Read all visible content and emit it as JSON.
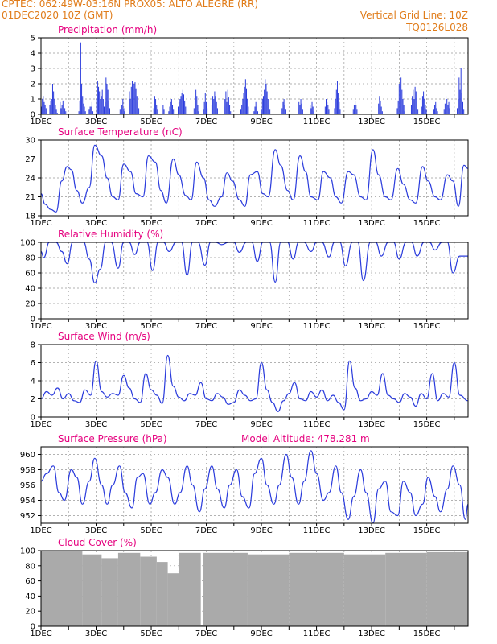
{
  "header": {
    "line1_left": "CPTEC:   062:49W-03:16N   PROX05: ALTO ALEGRE (RR)",
    "line2_left": "01DEC2020 10Z (GMT)",
    "line2_right": "Vertical Grid Line: 10Z",
    "line3_right": "TQ0126L028"
  },
  "colors": {
    "header": "#e07c1a",
    "title": "#e5007e",
    "line": "#2a3bdc",
    "cloud": "#aaaaaa"
  },
  "chart_data": [
    {
      "type": "bar",
      "title": "Precipitation (mm/h)",
      "ylim": [
        0,
        5
      ],
      "yticks": [
        0,
        1,
        2,
        3,
        4,
        5
      ],
      "xticks": [
        "1DEC",
        "3DEC",
        "5DEC",
        "7DEC",
        "9DEC",
        "11DEC",
        "13DEC",
        "15DEC"
      ],
      "xrange_days": 15.5,
      "values": [
        0.5,
        1.0,
        1.2,
        0.8,
        0.6,
        0.4,
        0.2,
        0,
        0,
        0.6,
        0.9,
        1.0,
        2.0,
        1.5,
        1.0,
        0.6,
        0.3,
        0.1,
        0,
        0,
        0.8,
        0.4,
        0.6,
        0.9,
        0.7,
        0.4,
        0.2,
        0,
        0,
        0,
        0,
        0,
        0,
        0,
        0,
        0,
        0,
        0,
        0,
        0,
        0.2,
        0.9,
        4.7,
        2.0,
        1.2,
        0.7,
        0.5,
        0.2,
        0,
        0,
        0,
        0.3,
        0.5,
        0.5,
        0.8,
        0.2,
        0,
        0,
        0,
        1.0,
        2.2,
        1.8,
        1.5,
        1.0,
        1.2,
        1.6,
        1.0,
        0.5,
        0.8,
        2.4,
        2.0,
        1.6,
        0.9,
        0.4,
        0,
        0,
        0,
        0,
        0,
        0,
        0,
        0,
        0,
        0,
        0.3,
        0.8,
        0.6,
        1.0,
        0.4,
        0.2,
        0,
        0,
        0,
        0,
        1.5,
        1.0,
        1.8,
        2.2,
        1.6,
        2.0,
        2.1,
        1.7,
        1.2,
        0.8,
        0.4,
        0,
        0,
        0,
        0,
        0,
        0,
        0,
        0,
        0,
        0,
        0,
        0,
        0,
        0,
        0,
        0.4,
        1.2,
        1.0,
        0.6,
        0.3,
        0,
        0,
        0,
        0,
        0,
        0.6,
        0.3,
        0,
        0,
        0,
        0,
        0.2,
        0.5,
        0.8,
        1.0,
        0.6,
        0.3,
        0,
        0,
        0,
        0,
        0.5,
        0.8,
        1.0,
        1.2,
        1.4,
        1.6,
        1.3,
        0.9,
        0.5,
        0,
        0,
        0,
        0,
        0,
        0,
        0,
        0,
        0.4,
        0.9,
        1.6,
        1.2,
        0.6,
        0.2,
        0,
        0,
        0,
        0,
        0.3,
        0.8,
        1.4,
        0.8,
        0.4,
        0,
        0,
        0,
        0,
        0.6,
        1.2,
        1.0,
        1.5,
        1.2,
        0.8,
        0.4,
        0,
        0,
        0,
        0,
        0,
        0,
        0.5,
        1.0,
        1.5,
        0.8,
        1.6,
        1.1,
        0.6,
        0.2,
        0,
        0,
        0,
        0,
        0,
        0,
        0,
        0,
        0,
        0,
        0.3,
        0.6,
        1.0,
        1.4,
        1.8,
        2.3,
        1.7,
        1.0,
        0.5,
        0,
        0,
        0,
        0,
        0,
        0.2,
        0.5,
        0.8,
        0.5,
        0.2,
        0,
        0,
        0,
        0.3,
        1.0,
        1.2,
        1.6,
        2.3,
        2.0,
        1.5,
        1.0,
        0.6,
        0.3,
        0,
        0,
        0,
        0,
        0,
        0,
        0,
        0,
        0,
        0,
        0,
        0,
        0.4,
        0.8,
        1.0,
        0.6,
        0.3,
        0,
        0,
        0,
        0,
        0,
        0,
        0,
        0,
        0,
        0,
        0,
        0,
        0.4,
        0.8,
        0.6,
        1.0,
        0.7,
        0.3,
        0,
        0,
        0,
        0,
        0,
        0,
        0,
        0.6,
        0.4,
        0.8,
        0.5,
        0.2,
        0,
        0,
        0,
        0,
        0,
        0,
        0,
        0,
        0,
        0,
        0,
        0.5,
        1.0,
        0.8,
        0.6,
        0.3,
        0,
        0,
        0,
        0,
        0,
        0.4,
        1.0,
        1.6,
        2.2,
        1.4,
        0.8,
        0.3,
        0,
        0,
        0,
        0,
        0,
        0,
        0,
        0,
        0,
        0,
        0,
        0,
        0,
        0.3,
        0.6,
        0.9,
        0.6,
        0.3,
        0,
        0,
        0,
        0,
        0,
        0,
        0,
        0,
        0,
        0,
        0,
        0,
        0,
        0,
        0,
        0,
        0,
        0,
        0,
        0,
        0,
        0,
        0.7,
        1.2,
        0.9,
        0.5,
        0.2,
        0,
        0,
        0,
        0,
        0,
        0,
        0,
        0,
        0,
        0,
        0,
        0,
        0,
        0,
        0,
        0.4,
        0.9,
        2.0,
        3.2,
        2.4,
        1.6,
        1.0,
        0.6,
        0.2,
        0,
        0,
        0,
        0,
        0,
        0,
        0.6,
        1.2,
        1.6,
        1.0,
        1.8,
        1.5,
        0.8,
        0.3,
        0,
        0,
        0,
        0.5,
        1.2,
        1.5,
        1.0,
        0.6,
        0.3,
        0,
        0,
        0,
        0,
        0,
        0,
        0,
        0.3,
        0.6,
        0.8,
        0.4,
        0.2,
        0,
        0,
        0,
        0,
        0,
        0,
        0.3,
        0.7,
        1.2,
        1.0,
        0.6,
        0.8,
        0.4,
        0,
        0,
        0,
        0,
        0,
        0,
        0,
        0.4,
        1.0,
        2.4,
        1.6,
        3.0,
        1.4,
        0.8,
        0.3,
        0,
        0,
        0,
        0
      ]
    },
    {
      "type": "line",
      "title": "Surface Temperature (nC)",
      "ylim": [
        18,
        30
      ],
      "yticks": [
        18,
        21,
        24,
        27,
        30
      ],
      "xticks": [
        "1DEC",
        "3DEC",
        "5DEC",
        "7DEC",
        "9DEC",
        "11DEC",
        "13DEC",
        "15DEC"
      ],
      "x": [
        0,
        0.15,
        0.35,
        0.55,
        0.75,
        0.95,
        1.1,
        1.3,
        1.5,
        1.75,
        1.95,
        2.2,
        2.4,
        2.6,
        2.8,
        3.0,
        3.25,
        3.45,
        3.7,
        3.9,
        4.15,
        4.35,
        4.55,
        4.8,
        5.0,
        5.25,
        5.45,
        5.65,
        5.9,
        6.1,
        6.3,
        6.55,
        6.75,
        6.95,
        7.2,
        7.4,
        7.6,
        7.85,
        8.05,
        8.25,
        8.5,
        8.7,
        8.95,
        9.15,
        9.4,
        9.6,
        9.8,
        10.05,
        10.25,
        10.5,
        10.7,
        10.9,
        11.15,
        11.35,
        11.6,
        11.8,
        12.05,
        12.25,
        12.5,
        12.7,
        12.95,
        13.15,
        13.4,
        13.6,
        13.85,
        14.05,
        14.3,
        14.5,
        14.75,
        14.95,
        15.15,
        15.35,
        15.5
      ],
      "values": [
        21.5,
        19.8,
        19.0,
        18.6,
        23.5,
        25.8,
        25.3,
        22.0,
        20.0,
        22.5,
        29.2,
        27.5,
        24.0,
        21.0,
        20.5,
        26.2,
        25.0,
        21.5,
        21.0,
        27.5,
        26.5,
        22.0,
        20.0,
        27.0,
        24.5,
        21.2,
        20.5,
        26.5,
        24.0,
        20.5,
        19.5,
        21.0,
        24.8,
        23.5,
        20.5,
        19.5,
        24.5,
        25.0,
        21.5,
        21.0,
        28.5,
        26.0,
        22.0,
        20.5,
        27.5,
        25.0,
        21.0,
        20.5,
        25.0,
        24.0,
        21.0,
        20.0,
        25.0,
        24.5,
        21.0,
        20.5,
        28.5,
        24.5,
        21.0,
        20.5,
        25.5,
        23.0,
        20.5,
        20.0,
        25.8,
        23.5,
        21.0,
        20.5,
        24.5,
        23.5,
        19.5,
        26.0,
        25.5
      ]
    },
    {
      "type": "line",
      "title": "Relative Humidity (%)",
      "ylim": [
        0,
        100
      ],
      "yticks": [
        0,
        20,
        40,
        60,
        80,
        100
      ],
      "xticks": [
        "1DEC",
        "3DEC",
        "5DEC",
        "7DEC",
        "9DEC",
        "11DEC",
        "13DEC",
        "15DEC"
      ],
      "x": [
        0,
        0.1,
        0.3,
        0.55,
        0.75,
        0.95,
        1.15,
        1.35,
        1.55,
        1.75,
        1.95,
        2.15,
        2.35,
        2.55,
        2.8,
        3.0,
        3.2,
        3.4,
        3.6,
        3.85,
        4.05,
        4.25,
        4.45,
        4.65,
        4.9,
        5.1,
        5.3,
        5.5,
        5.7,
        5.95,
        6.15,
        6.35,
        6.55,
        6.8,
        7.0,
        7.2,
        7.45,
        7.65,
        7.85,
        8.05,
        8.3,
        8.5,
        8.7,
        8.95,
        9.15,
        9.35,
        9.55,
        9.8,
        10.0,
        10.2,
        10.45,
        10.65,
        10.85,
        11.05,
        11.3,
        11.5,
        11.7,
        11.95,
        12.15,
        12.35,
        12.6,
        12.8,
        13.0,
        13.25,
        13.45,
        13.65,
        13.9,
        14.1,
        14.3,
        14.55,
        14.75,
        14.95,
        15.2,
        15.5
      ],
      "values": [
        88,
        80,
        100,
        100,
        88,
        72,
        100,
        100,
        100,
        78,
        47,
        65,
        100,
        100,
        66,
        100,
        100,
        84,
        100,
        100,
        63,
        100,
        100,
        88,
        100,
        100,
        57,
        100,
        100,
        70,
        100,
        100,
        97,
        100,
        100,
        87,
        100,
        100,
        75,
        100,
        100,
        48,
        100,
        100,
        78,
        100,
        100,
        88,
        100,
        100,
        81,
        100,
        100,
        69,
        100,
        100,
        50,
        100,
        100,
        82,
        100,
        100,
        78,
        100,
        100,
        82,
        100,
        100,
        90,
        100,
        100,
        60,
        82,
        82
      ]
    },
    {
      "type": "line",
      "title": "Surface Wind (m/s)",
      "ylim": [
        0,
        8
      ],
      "yticks": [
        0,
        2,
        4,
        6,
        8
      ],
      "xticks": [
        "1DEC",
        "3DEC",
        "5DEC",
        "7DEC",
        "9DEC",
        "11DEC",
        "13DEC",
        "15DEC"
      ],
      "x": [
        0,
        0.2,
        0.4,
        0.6,
        0.8,
        1.0,
        1.2,
        1.4,
        1.6,
        1.8,
        2.0,
        2.2,
        2.4,
        2.6,
        2.8,
        3.0,
        3.2,
        3.4,
        3.6,
        3.8,
        4.0,
        4.2,
        4.4,
        4.6,
        4.8,
        5.0,
        5.2,
        5.4,
        5.6,
        5.8,
        6.0,
        6.2,
        6.4,
        6.6,
        6.8,
        7.0,
        7.2,
        7.4,
        7.6,
        7.8,
        8.0,
        8.2,
        8.4,
        8.6,
        8.8,
        9.0,
        9.2,
        9.4,
        9.6,
        9.8,
        10.0,
        10.2,
        10.4,
        10.6,
        10.8,
        11.0,
        11.2,
        11.4,
        11.6,
        11.8,
        12.0,
        12.2,
        12.4,
        12.6,
        12.8,
        13.0,
        13.2,
        13.4,
        13.6,
        13.8,
        14.0,
        14.2,
        14.4,
        14.6,
        14.8,
        15.0,
        15.2,
        15.5
      ],
      "values": [
        2.0,
        2.8,
        2.4,
        3.2,
        2.0,
        2.6,
        1.8,
        1.6,
        3.0,
        2.4,
        6.2,
        2.8,
        2.2,
        2.6,
        2.4,
        4.6,
        3.2,
        2.0,
        1.6,
        4.8,
        3.0,
        2.4,
        1.5,
        6.8,
        3.4,
        2.2,
        1.8,
        2.6,
        2.4,
        3.8,
        2.0,
        1.8,
        2.6,
        2.2,
        1.4,
        1.6,
        3.0,
        2.4,
        1.8,
        2.0,
        6.0,
        3.0,
        1.6,
        0.6,
        1.8,
        2.6,
        3.8,
        2.0,
        1.8,
        2.8,
        2.2,
        3.0,
        1.8,
        2.4,
        1.6,
        0.8,
        6.2,
        3.2,
        1.8,
        2.0,
        2.8,
        2.4,
        4.8,
        2.4,
        2.0,
        1.6,
        2.6,
        2.2,
        1.2,
        2.6,
        2.0,
        4.8,
        1.8,
        2.6,
        2.2,
        6.0,
        2.4,
        1.8
      ]
    },
    {
      "type": "line",
      "title": "Surface Pressure (hPa)",
      "annotation": "Model Altitude: 478.281  m",
      "ylim": [
        951,
        961
      ],
      "yticks": [
        952,
        954,
        956,
        958,
        960
      ],
      "xticks": [
        "1DEC",
        "3DEC",
        "5DEC",
        "7DEC",
        "9DEC",
        "11DEC",
        "13DEC",
        "15DEC"
      ],
      "x": [
        0,
        0.2,
        0.45,
        0.65,
        0.85,
        1.1,
        1.3,
        1.5,
        1.75,
        1.95,
        2.2,
        2.4,
        2.6,
        2.85,
        3.05,
        3.3,
        3.5,
        3.7,
        3.95,
        4.15,
        4.4,
        4.6,
        4.85,
        5.05,
        5.3,
        5.5,
        5.75,
        5.95,
        6.2,
        6.4,
        6.65,
        6.85,
        7.1,
        7.3,
        7.55,
        7.75,
        8.0,
        8.2,
        8.45,
        8.65,
        8.9,
        9.1,
        9.35,
        9.55,
        9.8,
        10.0,
        10.25,
        10.45,
        10.7,
        10.9,
        11.15,
        11.35,
        11.6,
        11.8,
        12.05,
        12.25,
        12.5,
        12.7,
        12.95,
        13.15,
        13.4,
        13.6,
        13.85,
        14.05,
        14.3,
        14.5,
        14.75,
        14.95,
        15.2,
        15.4,
        15.5
      ],
      "values": [
        956.5,
        957.5,
        958.5,
        955.0,
        954.0,
        958.0,
        957.0,
        953.5,
        956.5,
        959.5,
        956.0,
        953.5,
        956.0,
        958.5,
        955.0,
        953.0,
        957.0,
        957.5,
        953.5,
        955.0,
        958.0,
        957.0,
        953.5,
        955.0,
        958.5,
        956.0,
        952.5,
        955.5,
        958.5,
        955.5,
        953.0,
        956.0,
        958.0,
        954.5,
        953.0,
        957.5,
        959.5,
        956.0,
        953.5,
        956.0,
        960.0,
        957.0,
        953.5,
        956.5,
        960.5,
        957.5,
        954.0,
        955.0,
        958.5,
        955.0,
        951.5,
        954.5,
        958.0,
        955.0,
        951.0,
        955.5,
        956.5,
        952.5,
        952.0,
        956.5,
        955.0,
        952.0,
        953.5,
        957.0,
        954.5,
        952.5,
        955.5,
        958.5,
        956.0,
        951.5,
        953.5
      ]
    },
    {
      "type": "bar",
      "title": "Cloud Cover (%)",
      "ylim": [
        0,
        100
      ],
      "yticks": [
        0,
        20,
        40,
        60,
        80,
        100
      ],
      "xticks": [
        "1DEC",
        "3DEC",
        "5DEC",
        "7DEC",
        "9DEC",
        "11DEC",
        "13DEC",
        "15DEC"
      ],
      "segments": [
        {
          "start_day": 0.0,
          "end_day": 1.5,
          "value": 100
        },
        {
          "start_day": 1.5,
          "end_day": 2.2,
          "value": 95
        },
        {
          "start_day": 2.2,
          "end_day": 2.8,
          "value": 90
        },
        {
          "start_day": 2.8,
          "end_day": 3.6,
          "value": 97
        },
        {
          "start_day": 3.6,
          "end_day": 4.2,
          "value": 92
        },
        {
          "start_day": 4.2,
          "end_day": 4.6,
          "value": 85
        },
        {
          "start_day": 4.6,
          "end_day": 5.0,
          "value": 70
        },
        {
          "start_day": 5.0,
          "end_day": 5.8,
          "value": 97
        },
        {
          "start_day": 5.8,
          "end_day": 5.87,
          "value": 2
        },
        {
          "start_day": 5.87,
          "end_day": 7.5,
          "value": 97
        },
        {
          "start_day": 7.5,
          "end_day": 9.0,
          "value": 95
        },
        {
          "start_day": 9.0,
          "end_day": 11.0,
          "value": 97
        },
        {
          "start_day": 11.0,
          "end_day": 12.5,
          "value": 95
        },
        {
          "start_day": 12.5,
          "end_day": 14.0,
          "value": 97
        },
        {
          "start_day": 14.0,
          "end_day": 15.5,
          "value": 98
        }
      ]
    }
  ]
}
